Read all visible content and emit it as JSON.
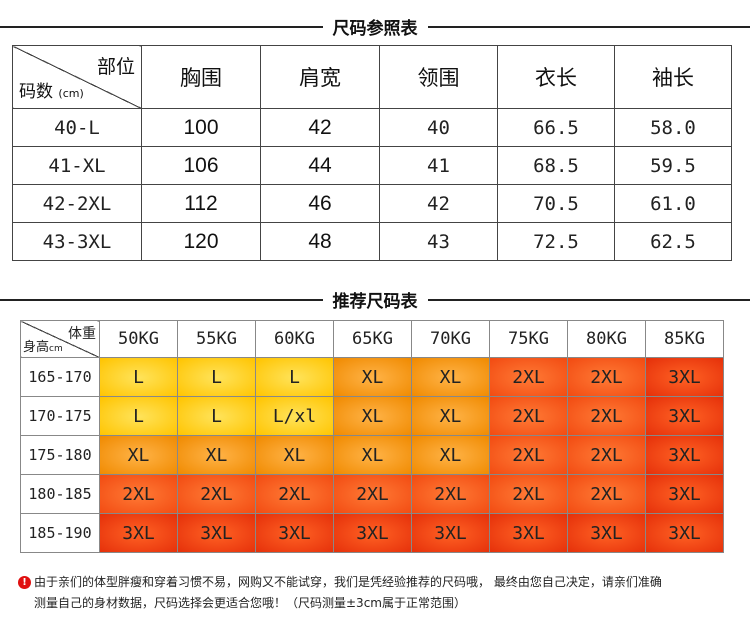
{
  "size_chart": {
    "title": "尺码参照表",
    "corner_top": "部位",
    "corner_bottom": "码数",
    "corner_unit": "(cm)",
    "columns": [
      "胸围",
      "肩宽",
      "领围",
      "衣长",
      "袖长"
    ],
    "rows": [
      {
        "size": "40-L",
        "chest": "100",
        "shoulder": "42",
        "collar": "40",
        "length": "66.5",
        "sleeve": "58.0"
      },
      {
        "size": "41-XL",
        "chest": "106",
        "shoulder": "44",
        "collar": "41",
        "length": "68.5",
        "sleeve": "59.5"
      },
      {
        "size": "42-2XL",
        "chest": "112",
        "shoulder": "46",
        "collar": "42",
        "length": "70.5",
        "sleeve": "61.0"
      },
      {
        "size": "43-3XL",
        "chest": "120",
        "shoulder": "48",
        "collar": "43",
        "length": "72.5",
        "sleeve": "62.5"
      }
    ]
  },
  "recommend_chart": {
    "title": "推荐尺码表",
    "corner_top": "体重",
    "corner_bottom": "身高",
    "corner_unit": "cm",
    "weights": [
      "50KG",
      "55KG",
      "60KG",
      "65KG",
      "70KG",
      "75KG",
      "80KG",
      "85KG"
    ],
    "rows": [
      {
        "height": "165-170",
        "sizes": [
          "L",
          "L",
          "L",
          "XL",
          "XL",
          "2XL",
          "2XL",
          "3XL"
        ]
      },
      {
        "height": "170-175",
        "sizes": [
          "L",
          "L",
          "L/xl",
          "XL",
          "XL",
          "2XL",
          "2XL",
          "3XL"
        ]
      },
      {
        "height": "175-180",
        "sizes": [
          "XL",
          "XL",
          "XL",
          "XL",
          "XL",
          "2XL",
          "2XL",
          "3XL"
        ]
      },
      {
        "height": "180-185",
        "sizes": [
          "2XL",
          "2XL",
          "2XL",
          "2XL",
          "2XL",
          "2XL",
          "2XL",
          "3XL"
        ]
      },
      {
        "height": "185-190",
        "sizes": [
          "3XL",
          "3XL",
          "3XL",
          "3XL",
          "3XL",
          "3XL",
          "3XL",
          "3XL"
        ]
      }
    ],
    "colors": {
      "yellow": "#ffcc00",
      "orange": "#f59a10",
      "red": "#f25a1a",
      "deep_red": "#e8380d"
    }
  },
  "note": {
    "icon": "exclamation-icon",
    "line1": "由于亲们的体型胖瘦和穿着习惯不易，网购又不能试穿，我们是凭经验推荐的尺码哦，  最终由您自己决定，请亲们准确",
    "line2": "测量自己的身材数据，尺码选择会更适合您哦！（尺码测量±3cm属于正常范围）"
  }
}
